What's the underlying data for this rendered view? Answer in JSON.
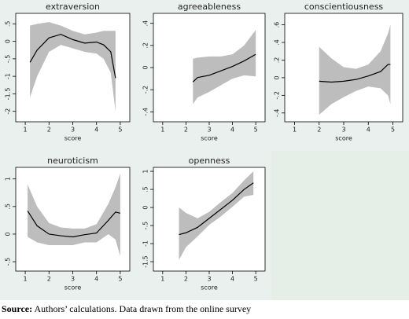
{
  "chart_data": [
    {
      "type": "line",
      "title": "extraversion",
      "xlabel": "score",
      "xlim": [
        0.6,
        5.4
      ],
      "xticks": [
        1,
        2,
        3,
        4,
        5
      ],
      "ylim": [
        -2.3,
        0.8
      ],
      "yticks": [
        {
          "value": -2,
          "label": "-2"
        },
        {
          "value": -1.5,
          "label": "-1.5"
        },
        {
          "value": -1,
          "label": "-1"
        },
        {
          "value": -0.5,
          "label": "-.5"
        },
        0,
        {
          "value": 0.5,
          "label": ".5"
        }
      ],
      "x": [
        1.2,
        1.5,
        2,
        2.5,
        3,
        3.5,
        4,
        4.3,
        4.6,
        4.8
      ],
      "series": [
        {
          "color": "#000000",
          "values": [
            -0.6,
            -0.25,
            0.1,
            0.2,
            0.05,
            -0.05,
            -0.02,
            -0.1,
            -0.3,
            -1.05
          ]
        }
      ],
      "band": {
        "color": "#bdbdbd",
        "upper": [
          0.45,
          0.5,
          0.55,
          0.45,
          0.3,
          0.2,
          0.25,
          0.3,
          0.3,
          0.3
        ],
        "lower": [
          -1.6,
          -1.0,
          -0.3,
          -0.1,
          -0.2,
          -0.3,
          -0.35,
          -0.5,
          -0.9,
          -2.0
        ]
      }
    },
    {
      "type": "line",
      "title": "agreeableness",
      "xlabel": "score",
      "xlim": [
        0.6,
        5.4
      ],
      "xticks": [
        1,
        2,
        3,
        4,
        5
      ],
      "ylim": [
        -0.49,
        0.49
      ],
      "yticks": [
        {
          "value": -0.4,
          "label": "-.4"
        },
        {
          "value": -0.2,
          "label": "-.2"
        },
        0,
        {
          "value": 0.2,
          "label": ".2"
        },
        {
          "value": 0.4,
          "label": ".4"
        }
      ],
      "x": [
        2.3,
        2.5,
        3,
        3.5,
        4,
        4.5,
        5
      ],
      "series": [
        {
          "color": "#000000",
          "values": [
            -0.13,
            -0.09,
            -0.07,
            -0.03,
            0.01,
            0.06,
            0.12
          ]
        }
      ],
      "band": {
        "color": "#bdbdbd",
        "upper": [
          0.08,
          0.09,
          0.1,
          0.1,
          0.12,
          0.2,
          0.34
        ],
        "lower": [
          -0.33,
          -0.27,
          -0.22,
          -0.16,
          -0.1,
          -0.07,
          -0.08
        ]
      }
    },
    {
      "type": "line",
      "title": "conscientiousness",
      "xlabel": "score",
      "xlim": [
        0.6,
        5.4
      ],
      "xticks": [
        1,
        2,
        3,
        4,
        5
      ],
      "ylim": [
        -0.5,
        0.73
      ],
      "yticks": [
        {
          "value": -0.4,
          "label": "-.4"
        },
        {
          "value": -0.2,
          "label": "-.2"
        },
        0,
        {
          "value": 0.2,
          "label": ".2"
        },
        {
          "value": 0.4,
          "label": ".4"
        },
        {
          "value": 0.6,
          "label": ".6"
        }
      ],
      "x": [
        2,
        2.5,
        3,
        3.5,
        4,
        4.5,
        4.8,
        4.9
      ],
      "series": [
        {
          "color": "#000000",
          "values": [
            -0.04,
            -0.05,
            -0.04,
            -0.02,
            0.02,
            0.07,
            0.15,
            0.15
          ]
        }
      ],
      "band": {
        "color": "#bdbdbd",
        "upper": [
          0.35,
          0.22,
          0.12,
          0.1,
          0.15,
          0.3,
          0.5,
          0.6
        ],
        "lower": [
          -0.42,
          -0.3,
          -0.22,
          -0.15,
          -0.1,
          -0.12,
          -0.2,
          -0.3
        ]
      }
    },
    {
      "type": "line",
      "title": "neuroticism",
      "xlabel": "score",
      "xlim": [
        0.6,
        5.4
      ],
      "xticks": [
        1,
        2,
        3,
        4,
        5
      ],
      "ylim": [
        -0.67,
        1.21
      ],
      "yticks": [
        {
          "value": -0.5,
          "label": "-.5"
        },
        0,
        {
          "value": 0.5,
          "label": ".5"
        },
        1
      ],
      "x": [
        1.1,
        1.5,
        2,
        2.5,
        3,
        3.5,
        4,
        4.5,
        4.8,
        5
      ],
      "series": [
        {
          "color": "#000000",
          "values": [
            0.42,
            0.15,
            0.0,
            -0.03,
            -0.05,
            -0.01,
            0.02,
            0.25,
            0.4,
            0.38
          ]
        }
      ],
      "band": {
        "color": "#bdbdbd",
        "upper": [
          0.9,
          0.5,
          0.2,
          0.12,
          0.1,
          0.1,
          0.18,
          0.55,
          0.85,
          1.1
        ],
        "lower": [
          -0.05,
          -0.15,
          -0.2,
          -0.2,
          -0.2,
          -0.15,
          -0.15,
          0.0,
          -0.1,
          -0.4
        ]
      }
    },
    {
      "type": "line",
      "title": "openness",
      "xlabel": "score",
      "xlim": [
        0.6,
        5.4
      ],
      "xticks": [
        1,
        2,
        3,
        4,
        5
      ],
      "ylim": [
        -1.76,
        1.11
      ],
      "yticks": [
        {
          "value": -1.5,
          "label": "-1.5"
        },
        {
          "value": -1,
          "label": "-1"
        },
        {
          "value": -0.5,
          "label": "-.5"
        },
        0,
        {
          "value": 0.5,
          "label": ".5"
        },
        1
      ],
      "x": [
        1.7,
        2,
        2.5,
        3,
        3.5,
        4,
        4.5,
        4.9
      ],
      "series": [
        {
          "color": "#000000",
          "values": [
            -0.75,
            -0.7,
            -0.55,
            -0.3,
            -0.05,
            0.2,
            0.5,
            0.68
          ]
        }
      ],
      "band": {
        "color": "#bdbdbd",
        "upper": [
          0.0,
          -0.15,
          -0.3,
          -0.12,
          0.15,
          0.4,
          0.75,
          1.0
        ],
        "lower": [
          -1.45,
          -1.1,
          -0.8,
          -0.48,
          -0.25,
          0.02,
          0.3,
          0.35
        ]
      }
    }
  ],
  "source": {
    "label": "Source:",
    "text": "Authors’ calculations. Data drawn from the online survey"
  }
}
